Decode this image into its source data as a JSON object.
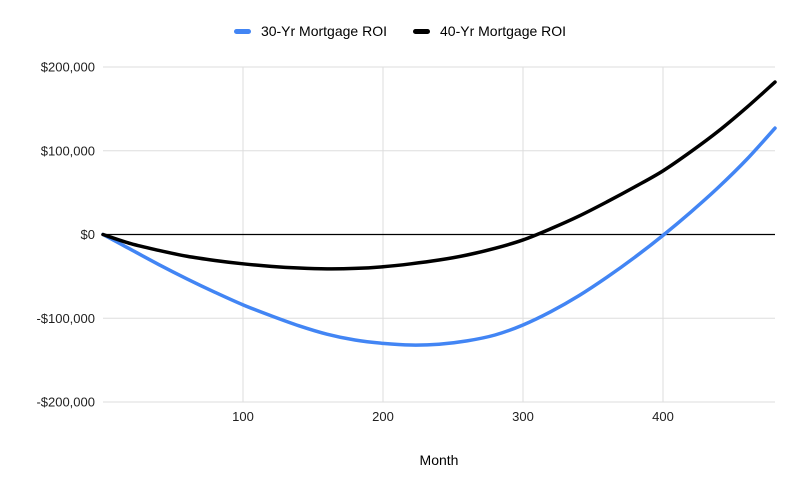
{
  "colors": {
    "background": "#ffffff",
    "gridline": "#dddddd",
    "zero_line": "#000000",
    "tick_text": "#1f1f1f",
    "series1": "#4285f4",
    "series2": "#000000"
  },
  "legend": {
    "items": [
      {
        "label": "30-Yr Mortgage ROI",
        "color": "#4285f4"
      },
      {
        "label": "40-Yr Mortgage ROI",
        "color": "#000000"
      }
    ]
  },
  "chart_data": {
    "type": "line",
    "title": "",
    "xlabel": "Month",
    "ylabel": "",
    "xlim": [
      0,
      480
    ],
    "ylim": [
      -200000,
      200000
    ],
    "grid": true,
    "legend_position": "top",
    "x_ticks": [
      {
        "value": 100,
        "label": "100"
      },
      {
        "value": 200,
        "label": "200"
      },
      {
        "value": 300,
        "label": "300"
      },
      {
        "value": 400,
        "label": "400"
      }
    ],
    "y_ticks": [
      {
        "value": 200000,
        "label": "$200,000"
      },
      {
        "value": 100000,
        "label": "$100,000"
      },
      {
        "value": 0,
        "label": "$0"
      },
      {
        "value": -100000,
        "label": "-$100,000"
      },
      {
        "value": -200000,
        "label": "-$200,000"
      }
    ],
    "x": [
      0,
      20,
      40,
      60,
      80,
      100,
      120,
      140,
      160,
      180,
      200,
      220,
      240,
      260,
      280,
      300,
      320,
      340,
      360,
      380,
      400,
      420,
      440,
      460,
      480
    ],
    "series": [
      {
        "name": "30-Yr Mortgage ROI",
        "color": "#4285f4",
        "values": [
          0,
          -18000,
          -36000,
          -53000,
          -69000,
          -84000,
          -97000,
          -109000,
          -119000,
          -126000,
          -130000,
          -132000,
          -131000,
          -127000,
          -120000,
          -108000,
          -92000,
          -73000,
          -51000,
          -27000,
          -1000,
          27000,
          57000,
          90000,
          127000
        ]
      },
      {
        "name": "40-Yr Mortgage ROI",
        "color": "#000000",
        "values": [
          0,
          -11000,
          -19000,
          -26000,
          -31000,
          -35000,
          -38000,
          -40000,
          -41000,
          -40500,
          -38500,
          -35000,
          -30500,
          -24500,
          -16500,
          -6500,
          7000,
          22000,
          39000,
          57000,
          76000,
          99000,
          124000,
          152000,
          182000
        ]
      }
    ]
  }
}
